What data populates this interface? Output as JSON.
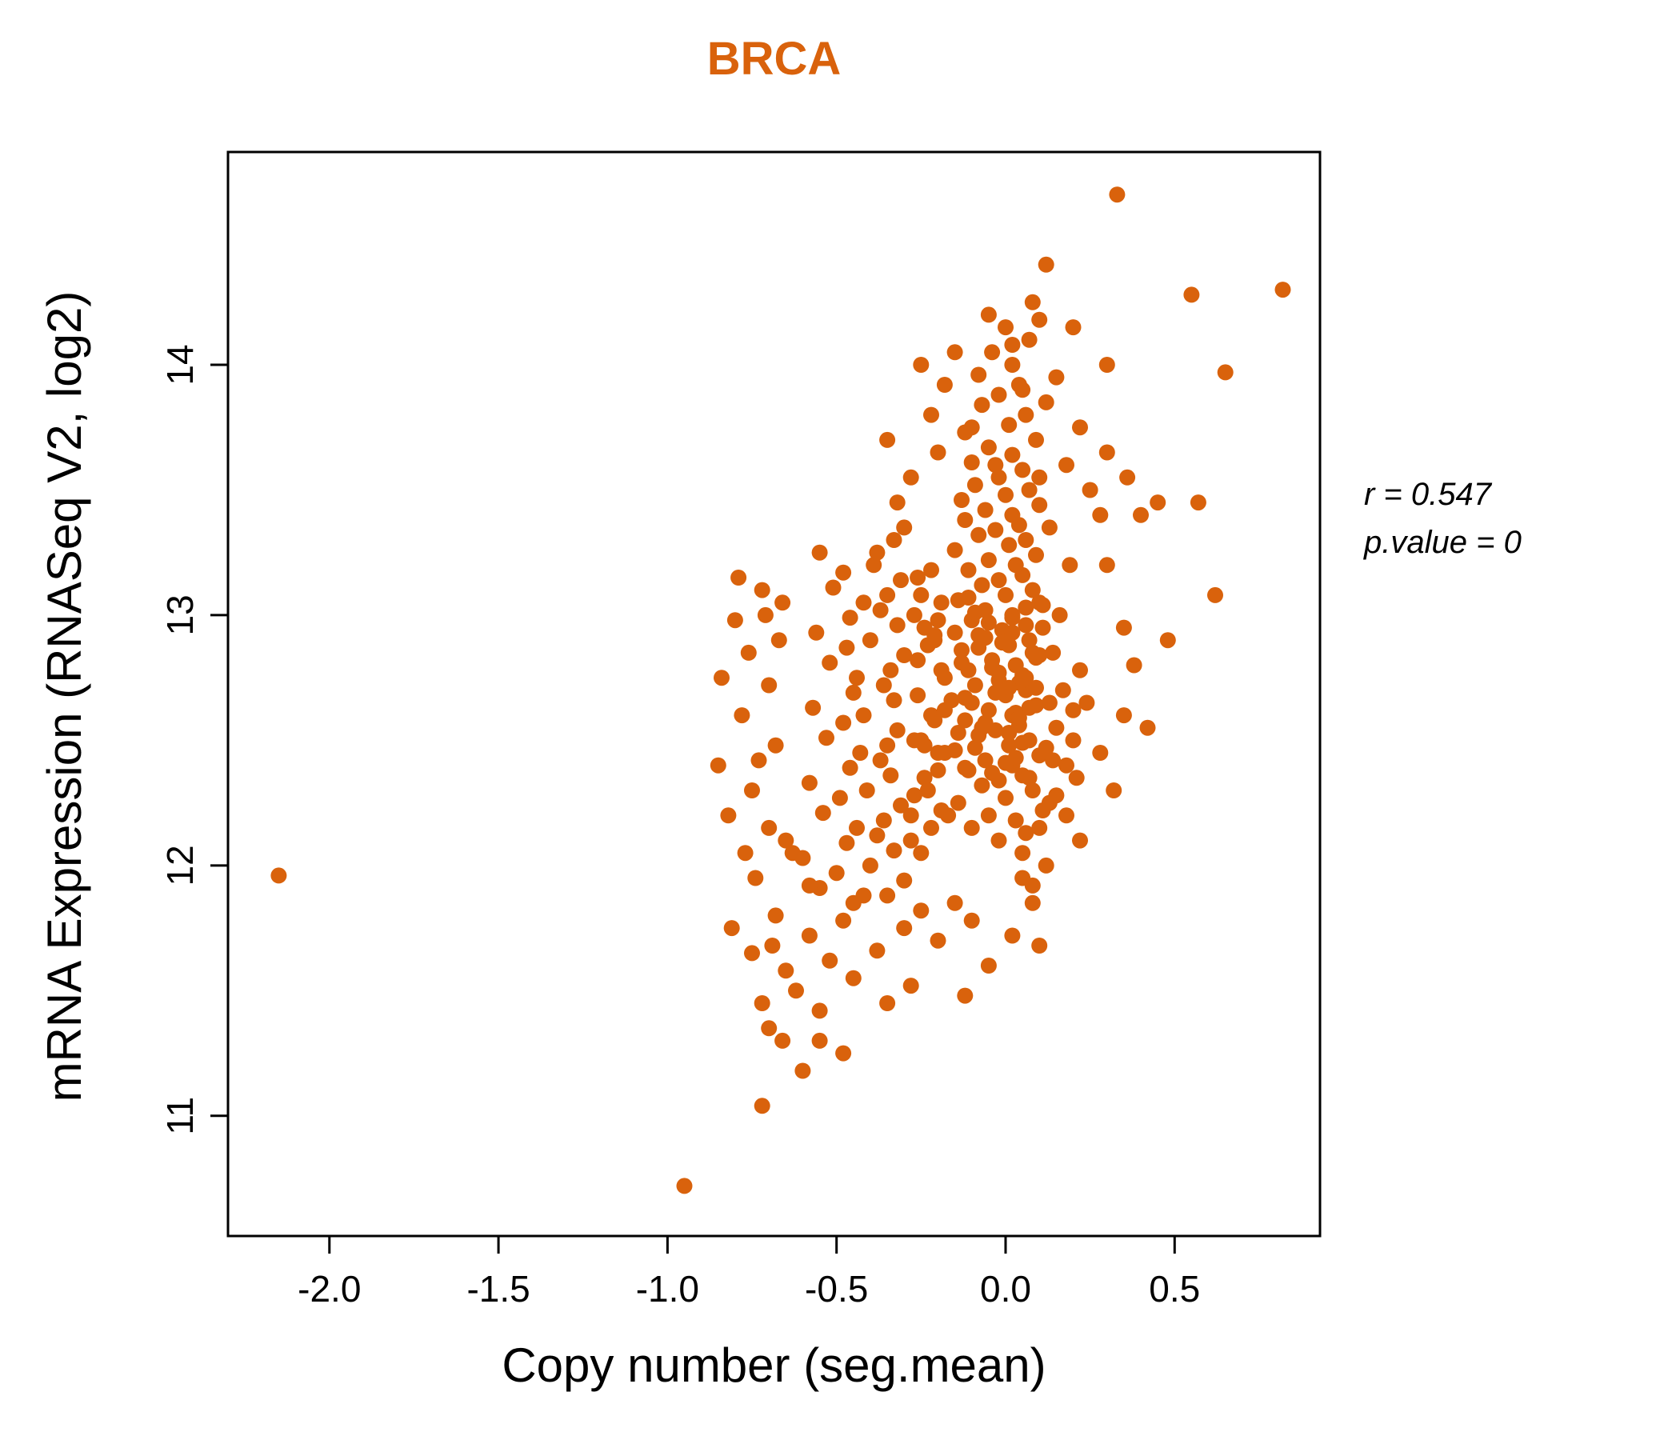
{
  "chart_data": {
    "type": "scatter",
    "title": "BRCA",
    "xlabel": "Copy number (seg.mean)",
    "ylabel": "mRNA Expression (RNASeq V2, log2)",
    "xlim": [
      -2.3,
      0.93
    ],
    "ylim": [
      10.52,
      14.85
    ],
    "xticks": [
      -2.0,
      -1.5,
      -1.0,
      -0.5,
      0.0,
      0.5
    ],
    "xtick_labels": [
      "-2.0",
      "-1.5",
      "-1.0",
      "-0.5",
      "0.0",
      "0.5"
    ],
    "yticks": [
      11,
      12,
      13,
      14
    ],
    "ytick_labels": [
      "11",
      "12",
      "13",
      "14"
    ],
    "grid": false,
    "legend": null,
    "point_color": "#D9620C",
    "title_color": "#D9620C",
    "stats": {
      "r": 0.547,
      "p_value": 0
    },
    "annotations": [
      "r = 0.547",
      "p.value = 0"
    ],
    "points": [
      [
        -0.02,
        12.1
      ],
      [
        0.06,
        12.13
      ],
      [
        -0.1,
        12.15
      ],
      [
        0.03,
        12.18
      ],
      [
        -0.05,
        12.2
      ],
      [
        0.11,
        12.22
      ],
      [
        -0.14,
        12.25
      ],
      [
        0.0,
        12.27
      ],
      [
        0.08,
        12.3
      ],
      [
        -0.07,
        12.32
      ],
      [
        -0.02,
        12.34
      ],
      [
        0.05,
        12.36
      ],
      [
        -0.11,
        12.38
      ],
      [
        0.02,
        12.4
      ],
      [
        -0.06,
        12.42
      ],
      [
        0.1,
        12.44
      ],
      [
        -0.15,
        12.46
      ],
      [
        0.01,
        12.48
      ],
      [
        0.07,
        12.5
      ],
      [
        -0.08,
        12.52
      ],
      [
        -0.03,
        12.54
      ],
      [
        0.04,
        12.56
      ],
      [
        -0.12,
        12.58
      ],
      [
        0.02,
        12.6
      ],
      [
        -0.05,
        12.62
      ],
      [
        0.09,
        12.64
      ],
      [
        -0.16,
        12.66
      ],
      [
        0.0,
        12.68
      ],
      [
        0.06,
        12.7
      ],
      [
        -0.09,
        12.72
      ],
      [
        -0.02,
        12.74
      ],
      [
        0.05,
        12.76
      ],
      [
        -0.11,
        12.78
      ],
      [
        0.03,
        12.8
      ],
      [
        -0.04,
        12.82
      ],
      [
        0.1,
        12.84
      ],
      [
        -0.13,
        12.86
      ],
      [
        0.01,
        12.88
      ],
      [
        0.07,
        12.9
      ],
      [
        -0.08,
        12.92
      ],
      [
        -0.01,
        12.94
      ],
      [
        0.06,
        12.96
      ],
      [
        -0.1,
        12.98
      ],
      [
        0.02,
        13.0
      ],
      [
        -0.06,
        13.02
      ],
      [
        0.11,
        13.04
      ],
      [
        -0.14,
        13.06
      ],
      [
        0.0,
        13.08
      ],
      [
        0.08,
        13.1
      ],
      [
        -0.07,
        13.12
      ],
      [
        -0.02,
        13.14
      ],
      [
        0.05,
        13.16
      ],
      [
        -0.11,
        13.18
      ],
      [
        0.03,
        13.2
      ],
      [
        -0.05,
        13.22
      ],
      [
        0.09,
        13.24
      ],
      [
        -0.15,
        13.26
      ],
      [
        0.01,
        13.28
      ],
      [
        0.06,
        13.3
      ],
      [
        -0.08,
        13.32
      ],
      [
        -0.03,
        13.34
      ],
      [
        0.04,
        13.36
      ],
      [
        -0.12,
        13.38
      ],
      [
        0.02,
        13.4
      ],
      [
        -0.06,
        13.42
      ],
      [
        0.1,
        13.44
      ],
      [
        -0.13,
        13.46
      ],
      [
        0.0,
        13.48
      ],
      [
        0.07,
        13.5
      ],
      [
        -0.09,
        13.52
      ],
      [
        -0.02,
        13.55
      ],
      [
        0.05,
        13.58
      ],
      [
        -0.1,
        13.61
      ],
      [
        0.02,
        13.64
      ],
      [
        -0.05,
        13.67
      ],
      [
        0.09,
        13.7
      ],
      [
        -0.12,
        13.73
      ],
      [
        0.01,
        13.76
      ],
      [
        0.06,
        13.8
      ],
      [
        -0.07,
        13.84
      ],
      [
        -0.02,
        13.88
      ],
      [
        0.04,
        13.92
      ],
      [
        -0.08,
        13.96
      ],
      [
        0.02,
        14.0
      ],
      [
        -0.04,
        14.05
      ],
      [
        0.07,
        14.1
      ],
      [
        0.0,
        14.15
      ],
      [
        0.1,
        14.18
      ],
      [
        -0.03,
        13.6
      ],
      [
        0.13,
        13.35
      ],
      [
        -0.2,
        12.45
      ],
      [
        -0.22,
        12.6
      ],
      [
        -0.18,
        12.75
      ],
      [
        -0.21,
        12.9
      ],
      [
        -0.19,
        13.05
      ],
      [
        -0.23,
        12.3
      ],
      [
        -0.17,
        12.2
      ],
      [
        0.15,
        12.55
      ],
      [
        0.17,
        12.7
      ],
      [
        0.14,
        12.85
      ],
      [
        0.16,
        13.0
      ],
      [
        0.18,
        12.4
      ],
      [
        0.13,
        12.25
      ],
      [
        -0.25,
        12.5
      ],
      [
        -0.24,
        12.95
      ],
      [
        0.2,
        12.62
      ],
      [
        0.22,
        12.78
      ],
      [
        -0.26,
        13.15
      ],
      [
        0.19,
        13.2
      ],
      [
        0.21,
        12.35
      ],
      [
        -0.45,
        11.85
      ],
      [
        -0.35,
        11.88
      ],
      [
        -0.55,
        11.91
      ],
      [
        -0.3,
        11.94
      ],
      [
        -0.5,
        11.97
      ],
      [
        -0.4,
        12.0
      ],
      [
        -0.6,
        12.03
      ],
      [
        -0.33,
        12.06
      ],
      [
        -0.47,
        12.09
      ],
      [
        -0.38,
        12.12
      ],
      [
        -0.44,
        12.15
      ],
      [
        -0.36,
        12.18
      ],
      [
        -0.54,
        12.21
      ],
      [
        -0.31,
        12.24
      ],
      [
        -0.49,
        12.27
      ],
      [
        -0.41,
        12.3
      ],
      [
        -0.58,
        12.33
      ],
      [
        -0.34,
        12.36
      ],
      [
        -0.46,
        12.39
      ],
      [
        -0.37,
        12.42
      ],
      [
        -0.43,
        12.45
      ],
      [
        -0.35,
        12.48
      ],
      [
        -0.53,
        12.51
      ],
      [
        -0.32,
        12.54
      ],
      [
        -0.48,
        12.57
      ],
      [
        -0.42,
        12.6
      ],
      [
        -0.57,
        12.63
      ],
      [
        -0.33,
        12.66
      ],
      [
        -0.45,
        12.69
      ],
      [
        -0.36,
        12.72
      ],
      [
        -0.44,
        12.75
      ],
      [
        -0.34,
        12.78
      ],
      [
        -0.52,
        12.81
      ],
      [
        -0.3,
        12.84
      ],
      [
        -0.47,
        12.87
      ],
      [
        -0.4,
        12.9
      ],
      [
        -0.56,
        12.93
      ],
      [
        -0.32,
        12.96
      ],
      [
        -0.46,
        12.99
      ],
      [
        -0.37,
        13.02
      ],
      [
        -0.42,
        13.05
      ],
      [
        -0.35,
        13.08
      ],
      [
        -0.51,
        13.11
      ],
      [
        -0.31,
        13.14
      ],
      [
        -0.48,
        13.17
      ],
      [
        -0.39,
        13.2
      ],
      [
        -0.55,
        13.25
      ],
      [
        -0.33,
        13.3
      ],
      [
        -0.28,
        12.2
      ],
      [
        -0.27,
        12.5
      ],
      [
        -0.25,
        12.05
      ],
      [
        -0.22,
        12.15
      ],
      [
        -0.27,
        12.28
      ],
      [
        -0.2,
        12.38
      ],
      [
        -0.24,
        12.48
      ],
      [
        -0.21,
        12.58
      ],
      [
        -0.26,
        12.68
      ],
      [
        -0.19,
        12.78
      ],
      [
        -0.23,
        12.88
      ],
      [
        -0.2,
        12.98
      ],
      [
        -0.25,
        13.08
      ],
      [
        -0.22,
        13.18
      ],
      [
        -0.28,
        12.1
      ],
      [
        -0.18,
        12.62
      ],
      [
        -0.24,
        12.35
      ],
      [
        -0.19,
        12.22
      ],
      [
        -0.26,
        12.82
      ],
      [
        -0.21,
        12.92
      ],
      [
        -0.27,
        13.0
      ],
      [
        -0.18,
        12.45
      ],
      [
        -0.7,
        11.35
      ],
      [
        -0.55,
        11.42
      ],
      [
        -0.62,
        11.5
      ],
      [
        -0.45,
        11.55
      ],
      [
        -0.52,
        11.62
      ],
      [
        -0.38,
        11.66
      ],
      [
        -0.58,
        11.72
      ],
      [
        -0.3,
        11.75
      ],
      [
        -0.48,
        11.78
      ],
      [
        -0.25,
        11.82
      ],
      [
        -0.65,
        11.58
      ],
      [
        -0.35,
        11.45
      ],
      [
        -0.2,
        11.7
      ],
      [
        -0.15,
        11.85
      ],
      [
        -0.42,
        11.88
      ],
      [
        -0.1,
        11.78
      ],
      [
        0.02,
        11.72
      ],
      [
        0.08,
        11.85
      ],
      [
        -0.05,
        11.6
      ],
      [
        0.05,
        11.95
      ],
      [
        -0.75,
        11.65
      ],
      [
        -0.68,
        11.8
      ],
      [
        -0.58,
        11.92
      ],
      [
        -0.72,
        11.45
      ],
      [
        -0.28,
        11.52
      ],
      [
        0.1,
        11.68
      ],
      [
        -0.12,
        11.48
      ],
      [
        -0.63,
        12.05
      ],
      [
        -0.7,
        12.15
      ],
      [
        -0.66,
        11.3
      ],
      [
        -0.8,
        12.98
      ],
      [
        -0.72,
        13.1
      ],
      [
        -0.78,
        12.6
      ],
      [
        -0.85,
        12.4
      ],
      [
        -0.75,
        12.3
      ],
      [
        -0.7,
        12.72
      ],
      [
        -0.82,
        12.2
      ],
      [
        -0.68,
        12.48
      ],
      [
        -0.76,
        12.85
      ],
      [
        -0.71,
        13.0
      ],
      [
        -0.65,
        12.1
      ],
      [
        -0.73,
        12.42
      ],
      [
        -0.79,
        13.15
      ],
      [
        -0.67,
        12.9
      ],
      [
        -0.74,
        11.95
      ],
      [
        -0.81,
        11.75
      ],
      [
        -0.69,
        11.68
      ],
      [
        -0.77,
        12.05
      ],
      [
        -0.84,
        12.75
      ],
      [
        -0.66,
        13.05
      ],
      [
        -0.35,
        13.7
      ],
      [
        -0.28,
        13.55
      ],
      [
        -0.22,
        13.8
      ],
      [
        -0.32,
        13.45
      ],
      [
        -0.18,
        13.92
      ],
      [
        -0.25,
        14.0
      ],
      [
        0.12,
        13.85
      ],
      [
        0.18,
        13.6
      ],
      [
        0.22,
        13.75
      ],
      [
        0.15,
        13.95
      ],
      [
        0.25,
        13.5
      ],
      [
        0.28,
        13.4
      ],
      [
        -0.15,
        14.05
      ],
      [
        0.08,
        14.25
      ],
      [
        0.12,
        14.4
      ],
      [
        -0.05,
        14.2
      ],
      [
        0.2,
        14.15
      ],
      [
        0.3,
        13.65
      ],
      [
        -0.3,
        13.35
      ],
      [
        -0.38,
        13.25
      ],
      [
        0.05,
        13.9
      ],
      [
        -0.1,
        13.75
      ],
      [
        0.02,
        14.08
      ],
      [
        -0.2,
        13.65
      ],
      [
        0.1,
        13.55
      ],
      [
        0.33,
        14.68
      ],
      [
        0.82,
        14.3
      ],
      [
        0.65,
        13.97
      ],
      [
        0.55,
        14.28
      ],
      [
        0.4,
        13.4
      ],
      [
        0.45,
        13.45
      ],
      [
        0.57,
        13.45
      ],
      [
        0.62,
        13.08
      ],
      [
        0.35,
        12.95
      ],
      [
        0.3,
        13.2
      ],
      [
        0.38,
        12.8
      ],
      [
        0.42,
        12.55
      ],
      [
        0.35,
        12.6
      ],
      [
        0.28,
        12.45
      ],
      [
        0.48,
        12.9
      ],
      [
        0.32,
        12.3
      ],
      [
        0.3,
        14.0
      ],
      [
        0.36,
        13.55
      ],
      [
        -2.15,
        11.96
      ],
      [
        -0.95,
        10.72
      ],
      [
        -0.72,
        11.04
      ],
      [
        -0.6,
        11.18
      ],
      [
        -0.55,
        11.3
      ],
      [
        -0.48,
        11.25
      ],
      [
        0.05,
        12.05
      ],
      [
        0.1,
        12.15
      ],
      [
        0.15,
        12.28
      ],
      [
        0.12,
        12.0
      ],
      [
        0.18,
        12.2
      ],
      [
        0.08,
        11.92
      ],
      [
        0.14,
        12.42
      ],
      [
        0.2,
        12.5
      ],
      [
        0.24,
        12.65
      ],
      [
        0.22,
        12.1
      ],
      [
        -0.04,
        12.37
      ],
      [
        0.03,
        12.43
      ],
      [
        -0.09,
        12.47
      ],
      [
        0.01,
        12.53
      ],
      [
        -0.06,
        12.57
      ],
      [
        0.07,
        12.63
      ],
      [
        -0.12,
        12.67
      ],
      [
        0.04,
        12.73
      ],
      [
        -0.02,
        12.77
      ],
      [
        0.09,
        12.83
      ],
      [
        -0.08,
        12.87
      ],
      [
        0.02,
        12.93
      ],
      [
        -0.05,
        12.97
      ],
      [
        0.06,
        13.03
      ],
      [
        -0.11,
        13.07
      ],
      [
        0.0,
        12.41
      ],
      [
        0.05,
        12.49
      ],
      [
        -0.07,
        12.55
      ],
      [
        0.03,
        12.61
      ],
      [
        -0.1,
        12.65
      ],
      [
        0.01,
        12.71
      ],
      [
        -0.04,
        12.79
      ],
      [
        0.08,
        12.85
      ],
      [
        -0.06,
        12.91
      ],
      [
        0.02,
        12.99
      ],
      [
        -0.09,
        13.01
      ],
      [
        0.04,
        12.59
      ],
      [
        -0.03,
        12.69
      ],
      [
        0.06,
        12.75
      ],
      [
        -0.01,
        12.89
      ],
      [
        0.11,
        12.95
      ],
      [
        -0.13,
        12.81
      ],
      [
        0.09,
        12.71
      ],
      [
        -0.15,
        12.93
      ],
      [
        0.13,
        12.65
      ],
      [
        0.07,
        12.35
      ],
      [
        -0.12,
        12.39
      ],
      [
        0.1,
        13.05
      ],
      [
        -0.14,
        12.53
      ],
      [
        0.12,
        12.47
      ]
    ]
  }
}
